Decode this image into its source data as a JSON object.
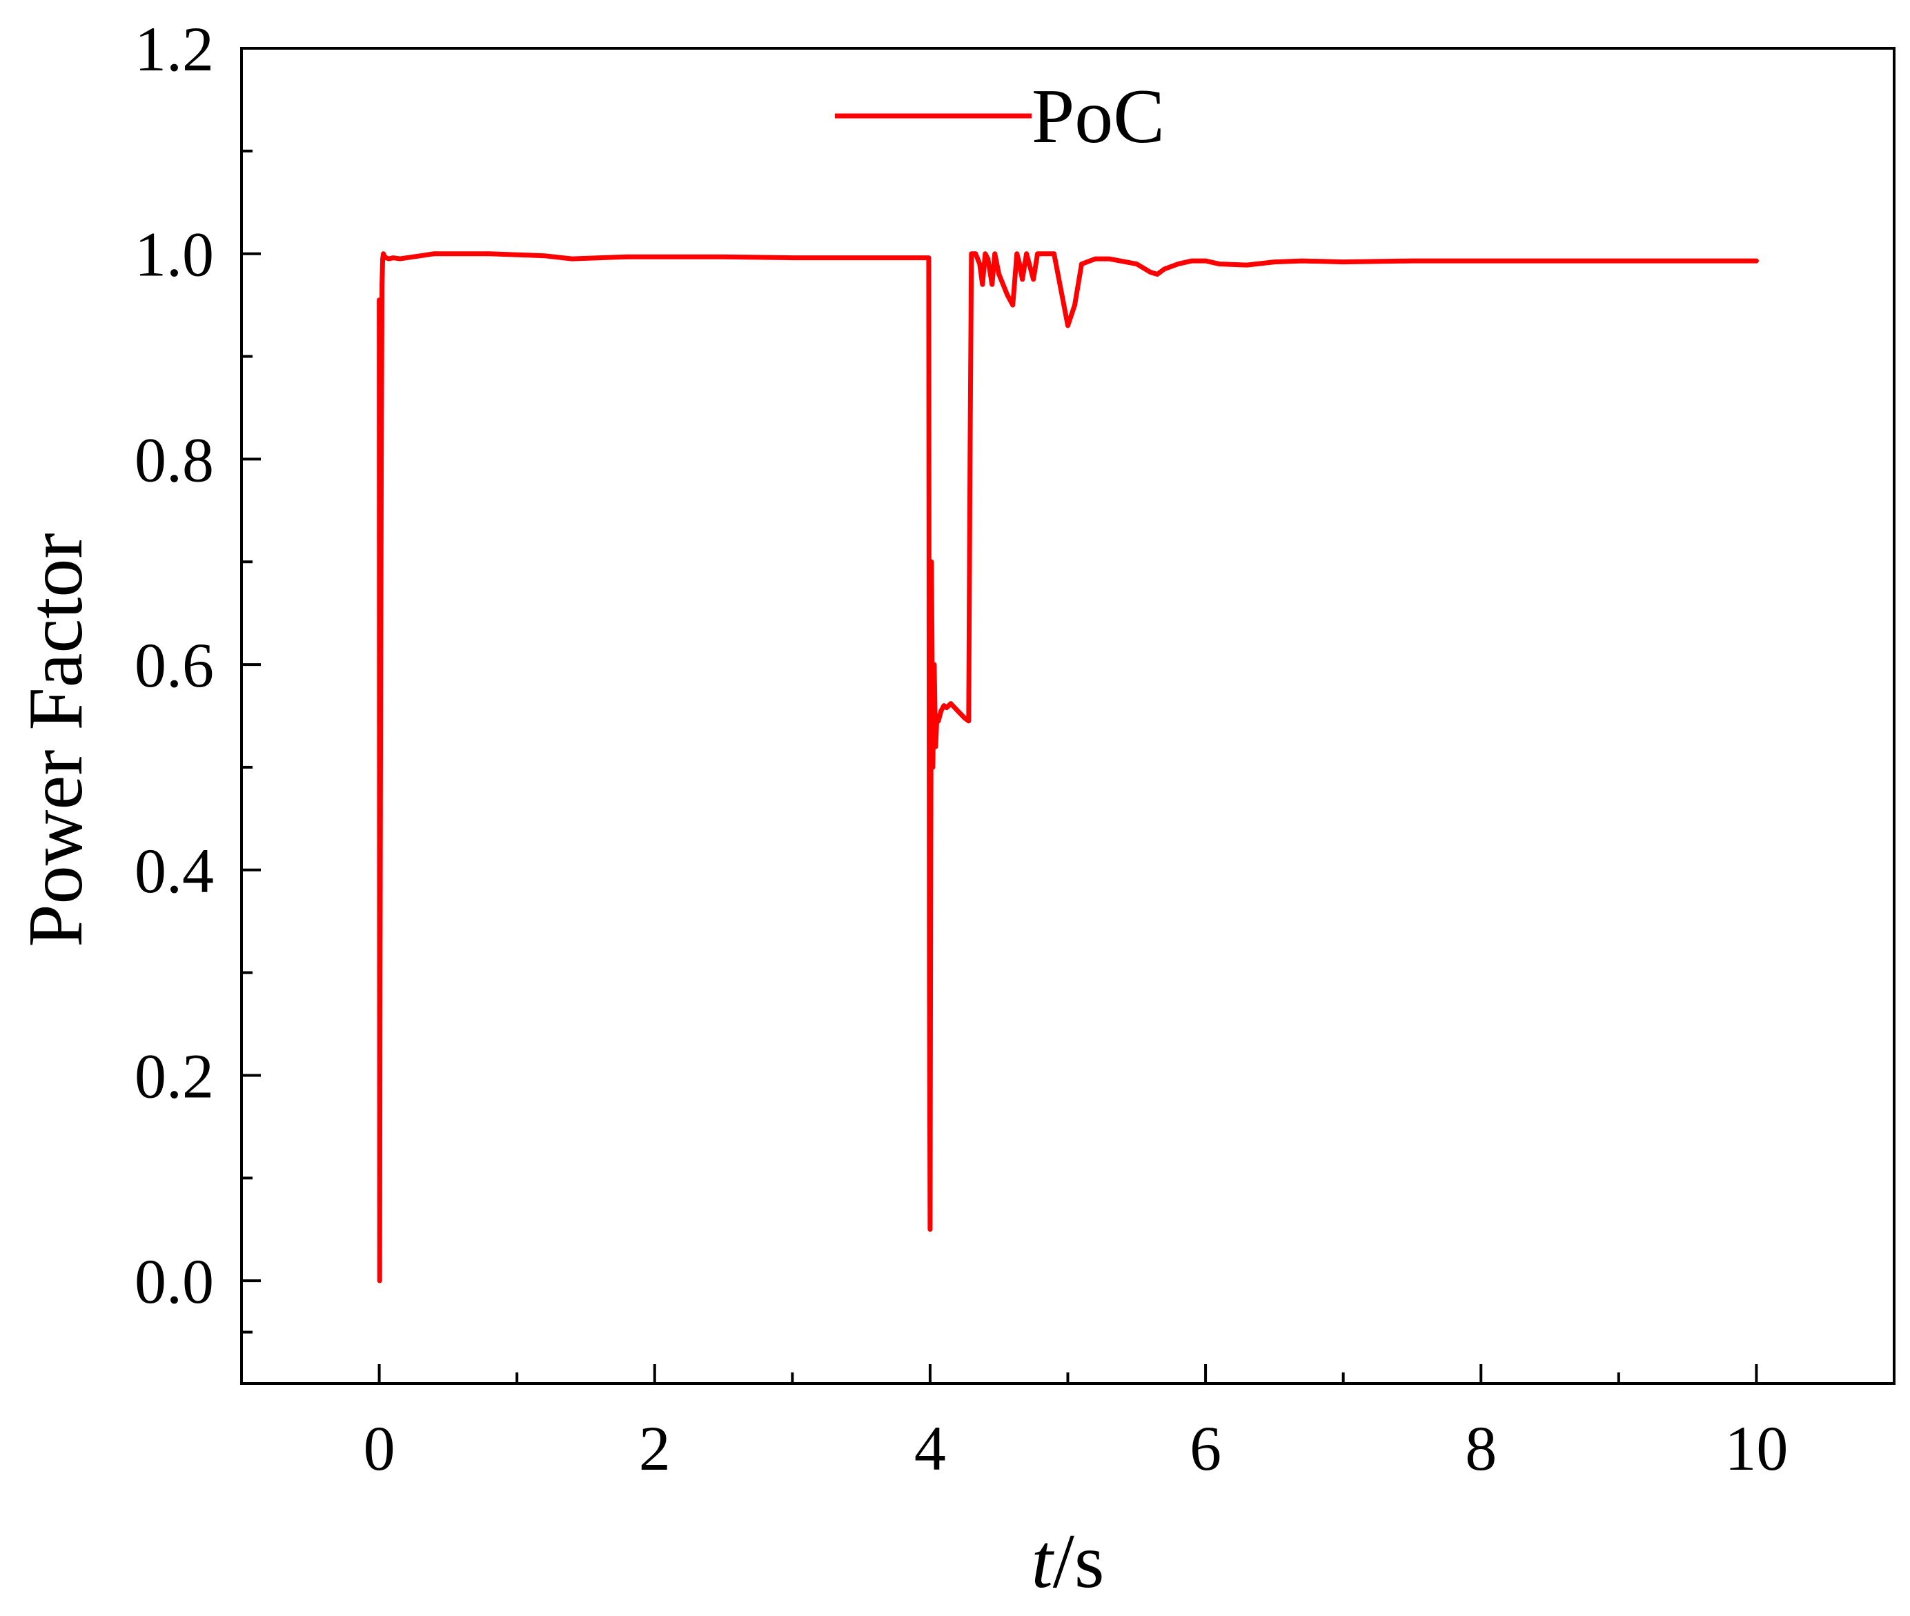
{
  "chart_data": {
    "type": "line",
    "title": "",
    "xlabel_italic": "t",
    "xlabel_unit": "/s",
    "ylabel": "Power Factor",
    "xlim": [
      -1,
      11
    ],
    "ylim": [
      -0.1,
      1.2
    ],
    "xticks": [
      0,
      2,
      4,
      6,
      8,
      10
    ],
    "xtick_labels": [
      "0",
      "2",
      "4",
      "6",
      "8",
      "10"
    ],
    "yticks": [
      0.0,
      0.2,
      0.4,
      0.6,
      0.8,
      1.0,
      1.2
    ],
    "ytick_labels": [
      "0.0",
      "0.2",
      "0.4",
      "0.6",
      "0.8",
      "1.0",
      "1.2"
    ],
    "grid": false,
    "legend_position": "top-center",
    "series": [
      {
        "name": "PoC",
        "color": "#ff0000",
        "x": [
          0.0,
          0.003,
          0.006,
          0.01,
          0.015,
          0.02,
          0.025,
          0.03,
          0.04,
          0.05,
          0.07,
          0.1,
          0.15,
          0.2,
          0.3,
          0.4,
          0.6,
          0.8,
          1.0,
          1.2,
          1.4,
          1.6,
          1.8,
          2.0,
          2.5,
          3.0,
          3.5,
          3.99,
          3.995,
          4.0,
          4.005,
          4.01,
          4.02,
          4.03,
          4.04,
          4.05,
          4.06,
          4.08,
          4.1,
          4.12,
          4.15,
          4.2,
          4.25,
          4.28,
          4.29,
          4.3,
          4.33,
          4.36,
          4.38,
          4.4,
          4.42,
          4.45,
          4.47,
          4.5,
          4.53,
          4.56,
          4.6,
          4.63,
          4.65,
          4.67,
          4.7,
          4.72,
          4.75,
          4.78,
          4.8,
          4.9,
          5.0,
          5.05,
          5.1,
          5.2,
          5.3,
          5.5,
          5.6,
          5.65,
          5.7,
          5.8,
          5.9,
          6.0,
          6.1,
          6.3,
          6.5,
          6.7,
          7.0,
          7.5,
          8.0,
          8.5,
          9.0,
          9.5,
          10.0
        ],
        "y": [
          0.955,
          0.0,
          0.3,
          0.55,
          0.8,
          0.97,
          0.995,
          1.0,
          0.997,
          0.996,
          0.995,
          0.996,
          0.995,
          0.996,
          0.998,
          1.0,
          1.0,
          1.0,
          0.999,
          0.998,
          0.995,
          0.996,
          0.997,
          0.997,
          0.997,
          0.996,
          0.996,
          0.996,
          0.3,
          0.05,
          0.42,
          0.7,
          0.5,
          0.6,
          0.52,
          0.55,
          0.545,
          0.555,
          0.56,
          0.558,
          0.562,
          0.555,
          0.548,
          0.545,
          0.8,
          1.0,
          1.0,
          0.99,
          0.97,
          1.0,
          0.995,
          0.97,
          1.0,
          0.98,
          0.97,
          0.96,
          0.95,
          1.0,
          0.99,
          0.975,
          1.0,
          0.99,
          0.975,
          1.0,
          1.0,
          1.0,
          0.93,
          0.95,
          0.99,
          0.995,
          0.995,
          0.99,
          0.982,
          0.98,
          0.985,
          0.99,
          0.993,
          0.993,
          0.99,
          0.989,
          0.992,
          0.993,
          0.992,
          0.993,
          0.993,
          0.993,
          0.993,
          0.993,
          0.993
        ]
      }
    ]
  }
}
